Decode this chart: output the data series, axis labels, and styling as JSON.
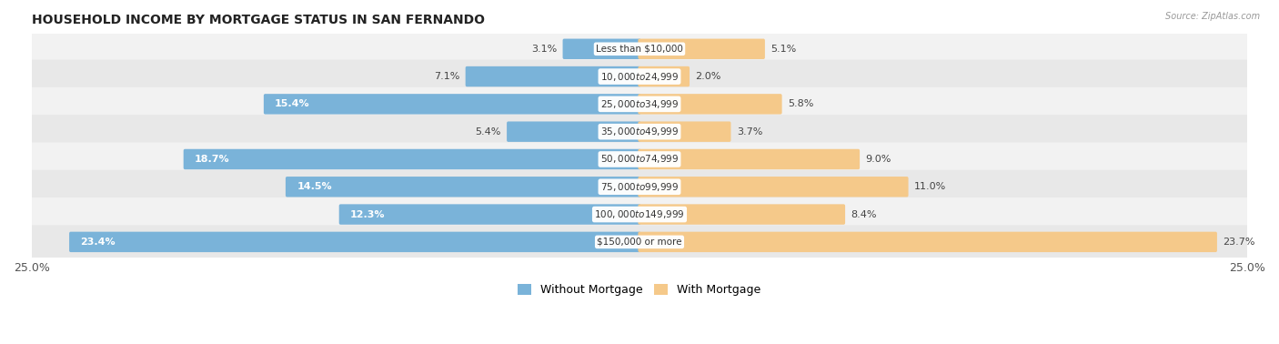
{
  "title": "HOUSEHOLD INCOME BY MORTGAGE STATUS IN SAN FERNANDO",
  "source": "Source: ZipAtlas.com",
  "categories": [
    "Less than $10,000",
    "$10,000 to $24,999",
    "$25,000 to $34,999",
    "$35,000 to $49,999",
    "$50,000 to $74,999",
    "$75,000 to $99,999",
    "$100,000 to $149,999",
    "$150,000 or more"
  ],
  "without_mortgage": [
    3.1,
    7.1,
    15.4,
    5.4,
    18.7,
    14.5,
    12.3,
    23.4
  ],
  "with_mortgage": [
    5.1,
    2.0,
    5.8,
    3.7,
    9.0,
    11.0,
    8.4,
    23.7
  ],
  "color_without": "#7ab3d9",
  "color_with": "#f5c98a",
  "row_color_light": "#f2f2f2",
  "row_color_dark": "#e8e8e8",
  "xlim": 25.0,
  "legend_labels": [
    "Without Mortgage",
    "With Mortgage"
  ],
  "title_fontsize": 10,
  "label_fontsize": 8,
  "category_fontsize": 7.5,
  "figsize": [
    14.06,
    3.78
  ]
}
